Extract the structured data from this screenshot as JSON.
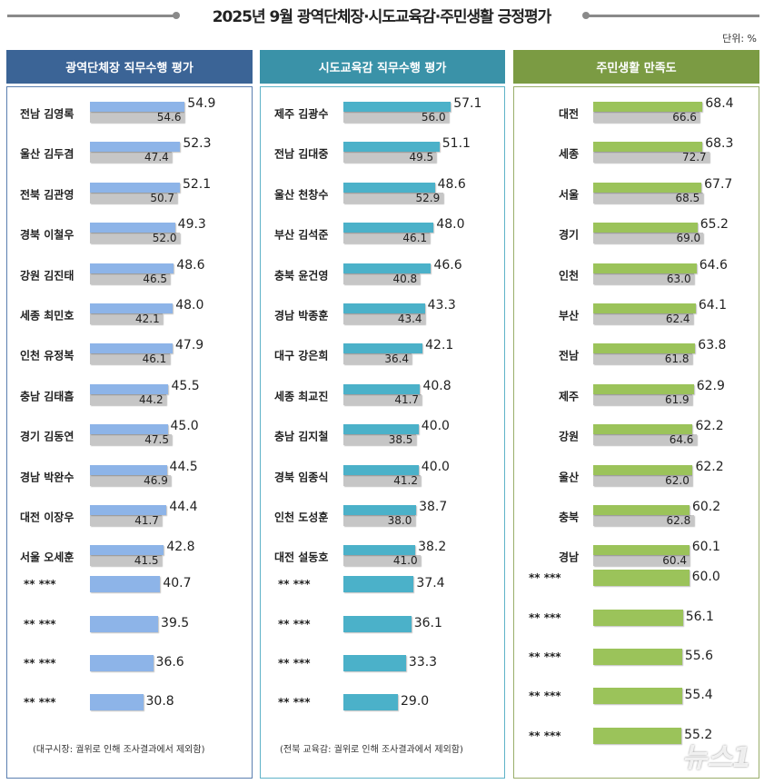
{
  "title": "2025년 9월 광역단체장·시도교육감·주민생활 긍정평가",
  "unit": "단위: %",
  "watermark": "뉴스1",
  "colors": {
    "panel1": "#8db4e8",
    "panel2": "#4bb1c9",
    "panel3": "#9bc35a",
    "previous": "#c6c6c6",
    "header1": "#3b6496",
    "header2": "#3a92a8",
    "header3": "#7b9b43"
  },
  "chart_data": [
    {
      "type": "bar",
      "title": "광역단체장 직무수행 평가",
      "orientation": "horizontal",
      "categories": [
        "전남 김영록",
        "울산 김두겸",
        "전북 김관영",
        "경북 이철우",
        "강원 김진태",
        "세종 최민호",
        "인천 유정복",
        "충남 김태흠",
        "경기 김동연",
        "경남 박완수",
        "대전 이장우",
        "서울 오세훈",
        "**  ***",
        "**  ***",
        "**  ***",
        "**  ***"
      ],
      "series": [
        {
          "values": [
            54.9,
            52.3,
            52.1,
            49.3,
            48.6,
            48.0,
            47.9,
            45.5,
            45.0,
            44.5,
            44.4,
            42.8,
            40.7,
            39.5,
            36.6,
            30.8
          ]
        },
        {
          "values": [
            54.6,
            47.4,
            50.7,
            52.0,
            46.5,
            42.1,
            46.1,
            44.2,
            47.5,
            46.9,
            41.7,
            41.5,
            null,
            null,
            null,
            null
          ]
        }
      ],
      "note": "(대구시장: 궐위로 인해  조사결과에서 제외함)"
    },
    {
      "type": "bar",
      "title": "시도교육감 직무수행 평가",
      "orientation": "horizontal",
      "categories": [
        "제주 김광수",
        "전남 김대중",
        "울산 천창수",
        "부산 김석준",
        "충북 윤건영",
        "경남 박종훈",
        "대구 강은희",
        "세종 최교진",
        "충남 김지철",
        "경북 임종식",
        "인천 도성훈",
        "대전 설동호",
        "**  ***",
        "**  ***",
        "**  ***",
        "**  ***"
      ],
      "series": [
        {
          "values": [
            57.1,
            51.1,
            48.6,
            48.0,
            46.6,
            43.3,
            42.1,
            40.8,
            40.0,
            40.0,
            38.7,
            38.2,
            37.4,
            36.1,
            33.3,
            29.0
          ]
        },
        {
          "values": [
            56.0,
            49.5,
            52.9,
            46.1,
            40.8,
            43.4,
            36.4,
            41.7,
            38.5,
            41.2,
            38.0,
            41.0,
            null,
            null,
            null,
            null
          ]
        }
      ],
      "note": "(전북 교육감: 궐위로 인해  조사결과에서 제외함)"
    },
    {
      "type": "bar",
      "title": "주민생활 만족도",
      "orientation": "horizontal",
      "categories": [
        "대전",
        "세종",
        "서울",
        "경기",
        "인천",
        "부산",
        "전남",
        "제주",
        "강원",
        "울산",
        "충북",
        "경남",
        "**  ***",
        "**  ***",
        "**  ***",
        "**  ***",
        "**  ***"
      ],
      "series": [
        {
          "values": [
            68.4,
            68.3,
            67.7,
            65.2,
            64.6,
            64.1,
            63.8,
            62.9,
            62.2,
            62.2,
            60.2,
            60.1,
            60.0,
            56.1,
            55.6,
            55.4,
            55.2
          ]
        },
        {
          "values": [
            66.6,
            72.7,
            68.5,
            69.0,
            63.0,
            62.4,
            61.8,
            61.9,
            64.6,
            62.0,
            62.8,
            60.4,
            null,
            null,
            null,
            null,
            null
          ]
        }
      ],
      "note": ""
    }
  ]
}
